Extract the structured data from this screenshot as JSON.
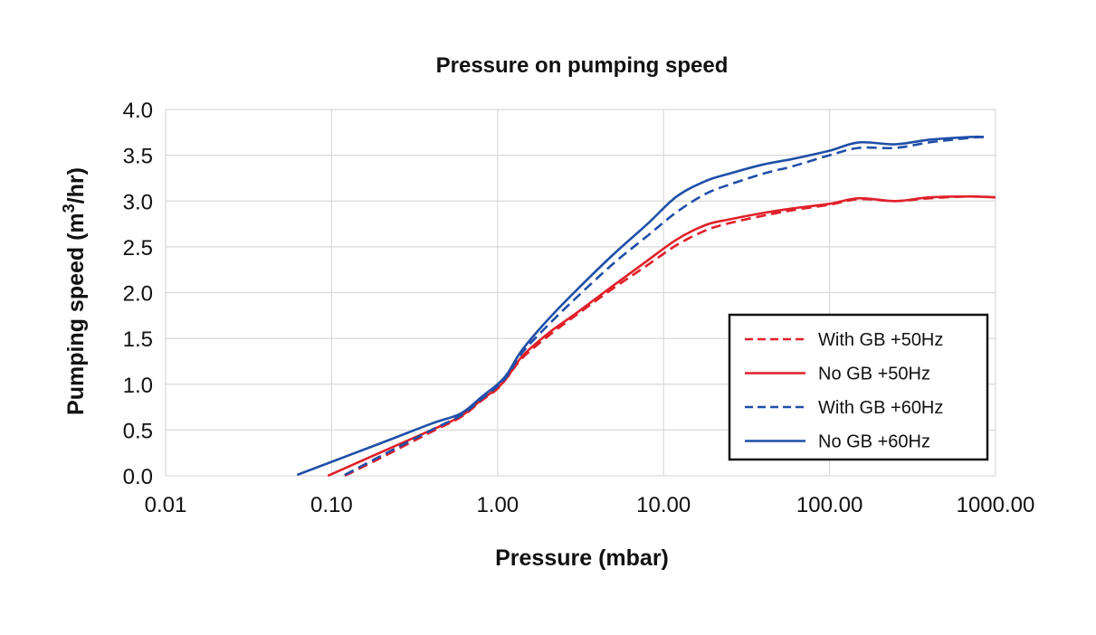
{
  "chart_data": {
    "type": "line",
    "title": "Pressure on pumping speed",
    "xlabel": "Pressure (mbar)",
    "ylabel_main": "Pumping speed (m",
    "ylabel_sup": "3",
    "ylabel_tail": "/hr)",
    "x_scale": "log",
    "xlim": [
      0.01,
      1000
    ],
    "ylim": [
      0,
      4.0
    ],
    "grid": true,
    "x_ticks": [
      0.01,
      0.1,
      1,
      10,
      100,
      1000
    ],
    "x_tick_labels": [
      "0.01",
      "0.10",
      "1.00",
      "10.00",
      "100.00",
      "1000.00"
    ],
    "y_ticks": [
      0,
      0.5,
      1.0,
      1.5,
      2.0,
      2.5,
      3.0,
      3.5,
      4.0
    ],
    "y_tick_labels": [
      "0.0",
      "0.5",
      "1.0",
      "1.5",
      "2.0",
      "2.5",
      "3.0",
      "3.5",
      "4.0"
    ],
    "legend_position": "lower-right",
    "series": [
      {
        "name": "With GB +50Hz",
        "color": "#e0202a",
        "dash": true,
        "x": [
          0.12,
          0.2,
          0.4,
          0.6,
          0.8,
          1.0,
          1.15,
          1.4,
          2.0,
          3.0,
          5.0,
          8.0,
          12.0,
          18.0,
          25.0,
          40.0,
          60.0,
          100.0,
          150.0,
          250.0,
          400.0,
          700.0,
          1000.0
        ],
        "y": [
          0.0,
          0.2,
          0.48,
          0.64,
          0.82,
          0.95,
          1.08,
          1.28,
          1.52,
          1.76,
          2.05,
          2.3,
          2.52,
          2.68,
          2.76,
          2.84,
          2.9,
          2.96,
          3.02,
          3.0,
          3.03,
          3.05,
          3.04
        ]
      },
      {
        "name": "No GB +50Hz",
        "color": "#e0202a",
        "dash": false,
        "x": [
          0.095,
          0.2,
          0.4,
          0.6,
          0.8,
          1.0,
          1.15,
          1.4,
          2.0,
          3.0,
          5.0,
          8.0,
          12.0,
          18.0,
          25.0,
          40.0,
          60.0,
          100.0,
          150.0,
          250.0,
          400.0,
          700.0,
          1000.0
        ],
        "y": [
          0.0,
          0.26,
          0.5,
          0.65,
          0.83,
          0.96,
          1.08,
          1.3,
          1.55,
          1.78,
          2.08,
          2.35,
          2.58,
          2.74,
          2.8,
          2.87,
          2.92,
          2.97,
          3.03,
          3.0,
          3.04,
          3.05,
          3.04
        ]
      },
      {
        "name": "With GB +60Hz",
        "color": "#1f4fa8",
        "dash": true,
        "x": [
          0.12,
          0.2,
          0.4,
          0.6,
          0.8,
          1.0,
          1.15,
          1.4,
          2.0,
          3.0,
          5.0,
          8.0,
          12.0,
          18.0,
          25.0,
          40.0,
          60.0,
          100.0,
          150.0,
          250.0,
          400.0,
          700.0,
          850.0
        ],
        "y": [
          0.01,
          0.22,
          0.5,
          0.66,
          0.84,
          0.98,
          1.1,
          1.34,
          1.64,
          1.95,
          2.32,
          2.62,
          2.88,
          3.08,
          3.18,
          3.3,
          3.38,
          3.5,
          3.58,
          3.58,
          3.64,
          3.69,
          3.7
        ]
      },
      {
        "name": "No GB +60Hz",
        "color": "#1f4fa8",
        "dash": false,
        "x": [
          0.062,
          0.2,
          0.4,
          0.6,
          0.8,
          1.0,
          1.15,
          1.4,
          2.0,
          3.0,
          5.0,
          8.0,
          12.0,
          18.0,
          25.0,
          40.0,
          60.0,
          100.0,
          150.0,
          250.0,
          400.0,
          700.0,
          850.0
        ],
        "y": [
          0.01,
          0.36,
          0.57,
          0.68,
          0.86,
          1.0,
          1.12,
          1.37,
          1.7,
          2.03,
          2.42,
          2.75,
          3.05,
          3.22,
          3.3,
          3.4,
          3.46,
          3.55,
          3.64,
          3.62,
          3.67,
          3.7,
          3.7
        ]
      }
    ]
  }
}
